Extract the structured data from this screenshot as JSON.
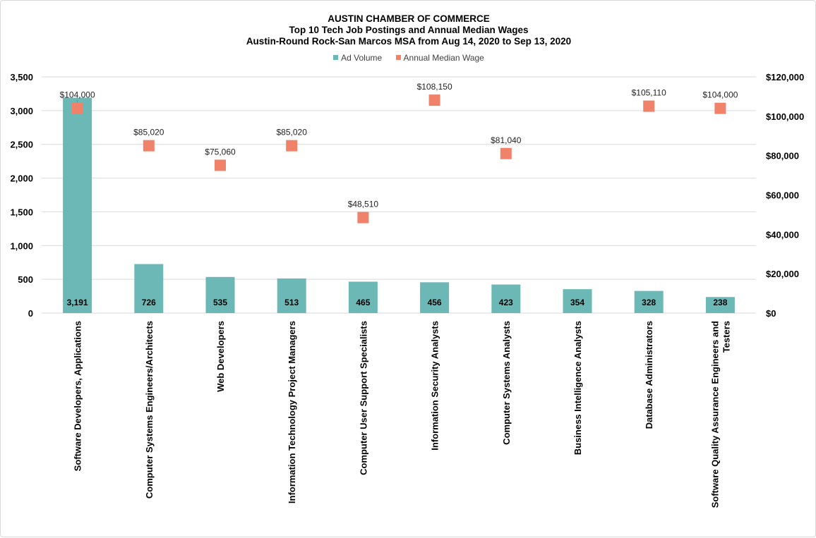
{
  "chart": {
    "title_lines": [
      "AUSTIN CHAMBER OF COMMERCE",
      "Top 10 Tech Job Postings and Annual  Median Wages",
      "Austin-Round Rock-San Marcos MSA from Aug 14, 2020 to Sep 13, 2020"
    ],
    "legend": [
      {
        "label": "Ad Volume",
        "color": "#6cb8b6"
      },
      {
        "label": "Annual Median Wage",
        "color": "#f0826a"
      }
    ]
  },
  "chart_data": {
    "type": "bar",
    "title": "AUSTIN CHAMBER OF COMMERCE — Top 10 Tech Job Postings and Annual Median Wages — Austin-Round Rock-San Marcos MSA from Aug 14, 2020 to Sep 13, 2020",
    "categories": [
      "Software Developers, Applications",
      "Computer Systems Engineers/Architects",
      "Web Developers",
      "Information Technology Project Managers",
      "Computer User Support Specialists",
      "Information Security Analysts",
      "Computer Systems Analysts",
      "Business Intelligence Analysts",
      "Database Administrators",
      "Software Quality Assurance Engineers and Testers"
    ],
    "category_label_lines": [
      [
        "Software Developers, Applications"
      ],
      [
        "Computer Systems Engineers/Architects"
      ],
      [
        "Web Developers"
      ],
      [
        "Information Technology Project Managers"
      ],
      [
        "Computer User Support Specialists"
      ],
      [
        "Information Security Analysts"
      ],
      [
        "Computer Systems Analysts"
      ],
      [
        "Business Intelligence Analysts"
      ],
      [
        "Database Administrators"
      ],
      [
        "Software Quality Assurance Engineers and",
        "Testers"
      ]
    ],
    "series": [
      {
        "name": "Ad Volume",
        "type": "bar",
        "axis": "left",
        "color": "#6cb8b6",
        "values": [
          3191,
          726,
          535,
          513,
          465,
          456,
          423,
          354,
          328,
          238
        ],
        "labels": [
          "3,191",
          "726",
          "535",
          "513",
          "465",
          "456",
          "423",
          "354",
          "328",
          "238"
        ]
      },
      {
        "name": "Annual Median Wage",
        "type": "scatter",
        "axis": "right",
        "color": "#f0826a",
        "values": [
          104000,
          85020,
          75060,
          85020,
          48510,
          108150,
          81040,
          null,
          105110,
          104000
        ],
        "labels": [
          "$104,000",
          "$85,020",
          "$75,060",
          "$85,020",
          "$48,510",
          "$108,150",
          "$81,040",
          "",
          "$105,110",
          "$104,000"
        ]
      }
    ],
    "y_left": {
      "ylim": [
        0,
        3500
      ],
      "ticks": [
        0,
        500,
        1000,
        1500,
        2000,
        2500,
        3000,
        3500
      ],
      "tick_labels": [
        "0",
        "500",
        "1,000",
        "1,500",
        "2,000",
        "2,500",
        "3,000",
        "3,500"
      ]
    },
    "y_right": {
      "ylim": [
        0,
        120000
      ],
      "ticks": [
        0,
        20000,
        40000,
        60000,
        80000,
        100000,
        120000
      ],
      "tick_labels": [
        "$0",
        "$20,000",
        "$40,000",
        "$60,000",
        "$80,000",
        "$100,000",
        "$120,000"
      ]
    },
    "grid": true,
    "legend_position": "top"
  }
}
